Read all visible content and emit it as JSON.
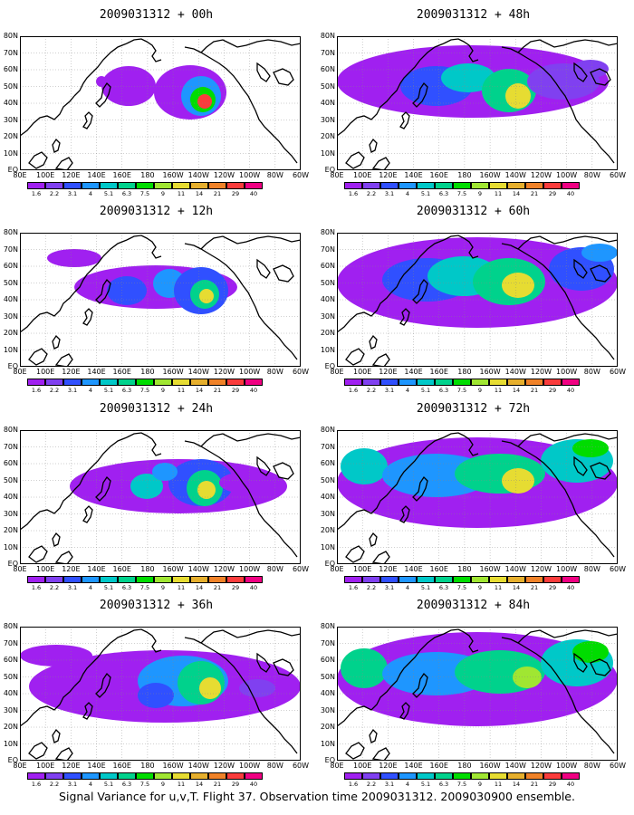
{
  "caption": "Signal Variance for u,v,T. Flight 37. Observation time 2009031312. 2009030900 ensemble.",
  "lat_labels": [
    "80N",
    "70N",
    "60N",
    "50N",
    "40N",
    "30N",
    "20N",
    "10N",
    "EQ"
  ],
  "lon_labels": [
    "80E",
    "100E",
    "120E",
    "140E",
    "160E",
    "180",
    "160W",
    "140W",
    "120W",
    "100W",
    "80W",
    "60W"
  ],
  "colorbar": {
    "labels": [
      "1.6",
      "2.2",
      "3.1",
      "4",
      "5.1",
      "6.3",
      "7.5",
      "9",
      "11",
      "14",
      "21",
      "29",
      "40"
    ],
    "colors": [
      "#a020f0",
      "#8040f0",
      "#3050ff",
      "#1e96ff",
      "#00c8c8",
      "#00d28c",
      "#00dc00",
      "#a0e632",
      "#e6dc32",
      "#e6af2d",
      "#f08228",
      "#fa3c3c",
      "#f00082"
    ]
  },
  "panels": [
    {
      "title": "2009031312 + 00h",
      "map": "Pacific signal variance, forecast hour 00"
    },
    {
      "title": "2009031312 + 12h",
      "map": "Pacific signal variance, forecast hour 12"
    },
    {
      "title": "2009031312 + 24h",
      "map": "Pacific signal variance, forecast hour 24"
    },
    {
      "title": "2009031312 + 36h",
      "map": "Pacific signal variance, forecast hour 36"
    },
    {
      "title": "2009031312 + 48h",
      "map": "Pacific signal variance, forecast hour 48"
    },
    {
      "title": "2009031312 + 60h",
      "map": "Pacific signal variance, forecast hour 60"
    },
    {
      "title": "2009031312 + 72h",
      "map": "Pacific signal variance, forecast hour 72"
    },
    {
      "title": "2009031312 + 84h",
      "map": "Pacific signal variance, forecast hour 84"
    }
  ]
}
